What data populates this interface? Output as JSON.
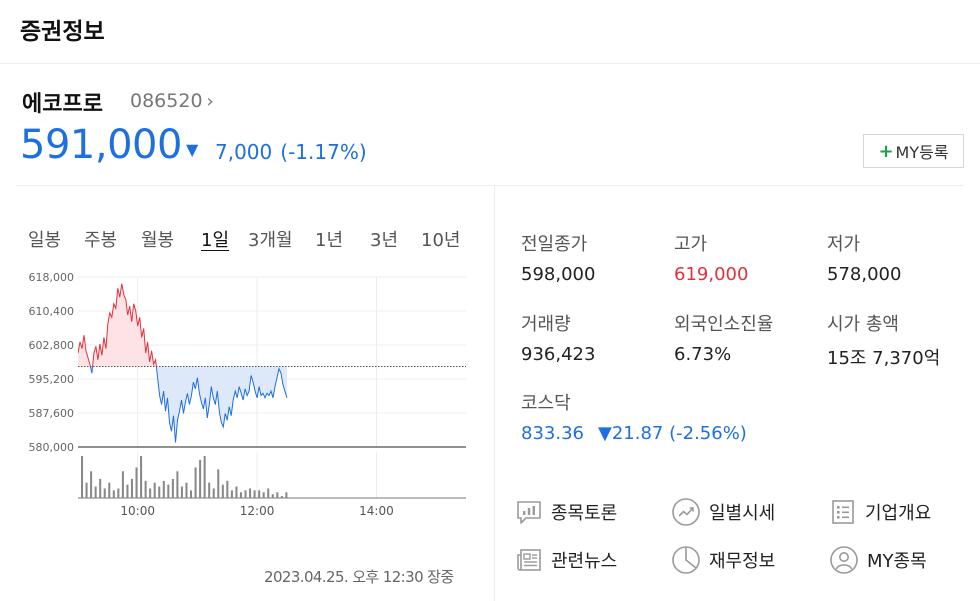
{
  "header": {
    "title": "증권정보"
  },
  "stock": {
    "name": "에코프로",
    "code": "086520",
    "code_chevron": "›",
    "price": "591,000",
    "change_symbol": "▼",
    "change": "7,000",
    "change_pct": "(-1.17%)",
    "my_button_plus": "+",
    "my_button_label": "MY등록"
  },
  "periods": [
    {
      "label": "일봉"
    },
    {
      "label": "주봉"
    },
    {
      "label": "월봉"
    },
    {
      "label": "1일",
      "active": true
    },
    {
      "label": "3개월"
    },
    {
      "label": "1년"
    },
    {
      "label": "3년"
    },
    {
      "label": "10년"
    }
  ],
  "chart_data": {
    "type": "line",
    "ytick_labels": [
      "618,000",
      "610,400",
      "602,800",
      "595,200",
      "587,600",
      "580,000"
    ],
    "yticks": [
      618000,
      610400,
      602800,
      595200,
      587600,
      580000
    ],
    "xtick_labels": [
      "10:00",
      "12:00",
      "14:00"
    ],
    "ylim": [
      580000,
      618000
    ],
    "session_minutes": [
      0,
      390
    ],
    "xtick_minutes": [
      60,
      180,
      300
    ],
    "reference_price": 598000,
    "grid": true,
    "price_series": {
      "x": [
        0,
        2,
        4,
        6,
        8,
        10,
        12,
        14,
        16,
        18,
        20,
        22,
        24,
        26,
        28,
        30,
        32,
        34,
        36,
        38,
        40,
        42,
        44,
        46,
        48,
        50,
        52,
        54,
        56,
        58,
        60,
        62,
        64,
        66,
        68,
        70,
        72,
        74,
        76,
        78,
        80,
        82,
        84,
        86,
        88,
        90,
        92,
        94,
        96,
        98,
        100,
        102,
        104,
        106,
        108,
        110,
        112,
        114,
        116,
        118,
        120,
        122,
        124,
        126,
        128,
        130,
        132,
        134,
        136,
        138,
        140,
        142,
        144,
        146,
        148,
        150,
        152,
        154,
        156,
        158,
        160,
        162,
        164,
        166,
        168,
        170,
        172,
        174,
        176,
        178,
        180,
        182,
        184,
        186,
        188,
        190,
        192,
        194,
        196,
        198,
        200,
        202,
        204,
        206,
        208,
        210
      ],
      "y": [
        601000,
        603500,
        602000,
        605000,
        601500,
        600000,
        598500,
        596500,
        601000,
        602500,
        599500,
        603000,
        600500,
        604500,
        602000,
        607500,
        610000,
        609000,
        612000,
        611000,
        615500,
        613500,
        616500,
        614000,
        613000,
        609500,
        611500,
        608000,
        612000,
        610500,
        607000,
        609000,
        604500,
        606500,
        601000,
        603500,
        599000,
        601500,
        598500,
        599500,
        595500,
        591500,
        589500,
        592500,
        588000,
        591000,
        585500,
        583500,
        587000,
        581000,
        586000,
        588000,
        590500,
        587500,
        590000,
        592000,
        589500,
        591500,
        594500,
        593000,
        595500,
        592000,
        590000,
        588500,
        591000,
        586500,
        589500,
        593500,
        591000,
        589500,
        592500,
        588000,
        585500,
        584500,
        587500,
        586000,
        589000,
        587000,
        590500,
        592500,
        591000,
        593500,
        592000,
        590500,
        593000,
        591500,
        592500,
        596000,
        594500,
        592500,
        591000,
        593500,
        591500,
        592000,
        591000,
        592000,
        591500,
        592500,
        591000,
        593500,
        595500,
        597500,
        596500,
        594000,
        592500,
        591000
      ]
    },
    "volume_bars": [
      22,
      8,
      14,
      6,
      10,
      5,
      8,
      4,
      5,
      14,
      7,
      10,
      16,
      22,
      9,
      5,
      8,
      6,
      9,
      7,
      10,
      14,
      6,
      8,
      4,
      16,
      20,
      22,
      8,
      5,
      15,
      7,
      9,
      4,
      6,
      3,
      4,
      5,
      4,
      4,
      3,
      5,
      2,
      3,
      1,
      3
    ]
  },
  "timestamp": "2023.04.25. 오후 12:30 장중",
  "stats": [
    {
      "label": "전일종가",
      "value": "598,000",
      "tone": ""
    },
    {
      "label": "고가",
      "value": "619,000",
      "tone": "red"
    },
    {
      "label": "저가",
      "value": "578,000",
      "tone": ""
    },
    {
      "label": "거래량",
      "value": "936,423",
      "tone": ""
    },
    {
      "label": "외국인소진율",
      "value": "6.73%",
      "tone": ""
    },
    {
      "label": "시가 총액",
      "value": "15조 7,370억",
      "tone": ""
    }
  ],
  "kosdaq": {
    "label": "코스닥",
    "value": "833.36",
    "change": "▼21.87",
    "change_pct": "(-2.56%)"
  },
  "links": [
    {
      "label": "종목토론",
      "icon": "chat-chart-icon"
    },
    {
      "label": "일별시세",
      "icon": "trend-circle-icon"
    },
    {
      "label": "기업개요",
      "icon": "list-doc-icon"
    },
    {
      "label": "관련뉴스",
      "icon": "news-icon"
    },
    {
      "label": "재무정보",
      "icon": "pie-chart-icon"
    },
    {
      "label": "MY종목",
      "icon": "user-circle-icon"
    }
  ],
  "colors": {
    "up": "#e0323b",
    "down": "#1e6fe0",
    "up_fill": "#fde3e6",
    "down_fill": "#dde9f9",
    "accent_green": "#1aa34a"
  }
}
